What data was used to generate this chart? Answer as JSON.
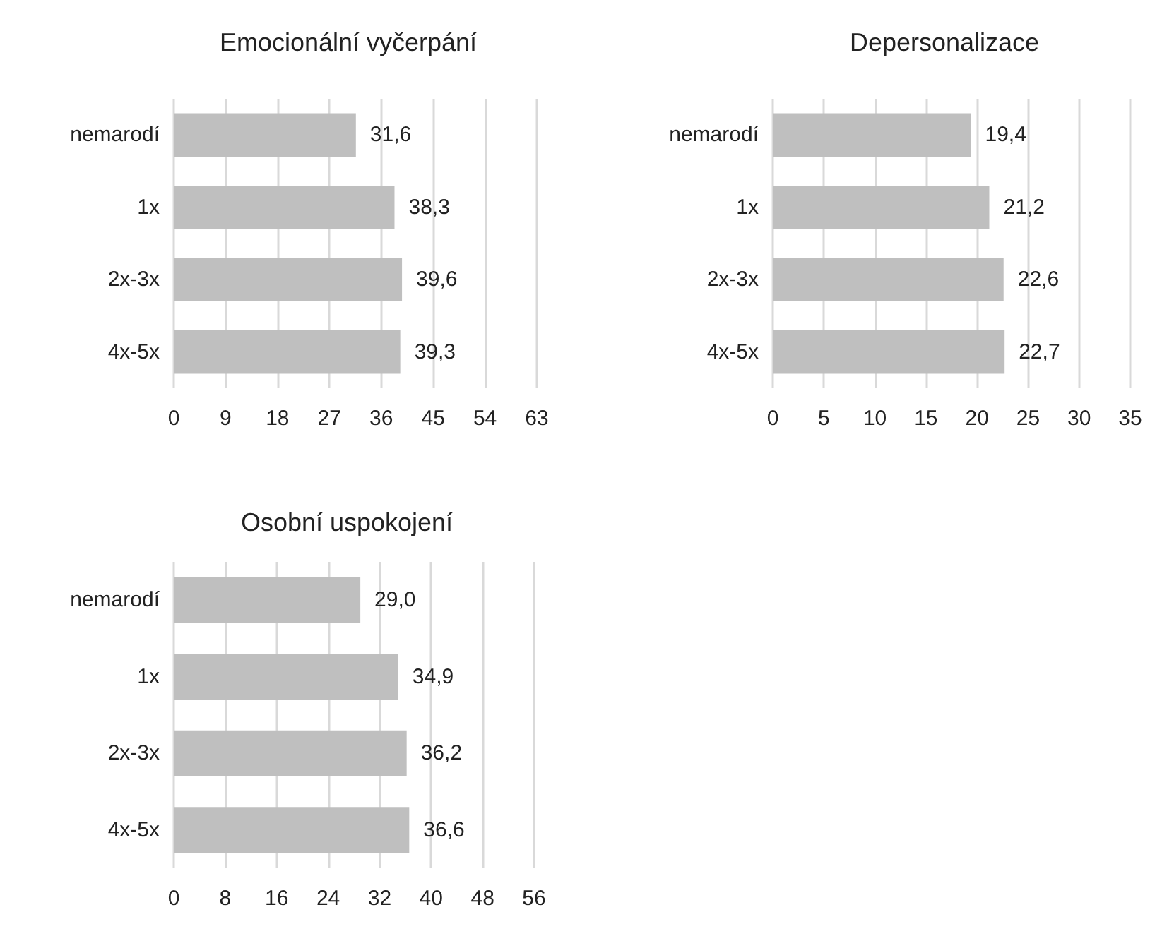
{
  "chart_data": [
    {
      "type": "bar",
      "orientation": "horizontal",
      "title": "Emocionální vyčerpání",
      "categories": [
        "nemarodí",
        "1x",
        "2x-3x",
        "4x-5x"
      ],
      "values": [
        31.6,
        38.3,
        39.6,
        39.3
      ],
      "value_labels": [
        "31,6",
        "38,3",
        "39,6",
        "39,3"
      ],
      "color": "#bfbfbf",
      "xlim": [
        0,
        63
      ],
      "xticks": [
        0,
        9,
        18,
        27,
        36,
        45,
        54,
        63
      ],
      "grid": "x"
    },
    {
      "type": "bar",
      "orientation": "horizontal",
      "title": "Depersonalizace",
      "categories": [
        "nemarodí",
        "1x",
        "2x-3x",
        "4x-5x"
      ],
      "values": [
        19.4,
        21.2,
        22.6,
        22.7
      ],
      "value_labels": [
        "19,4",
        "21,2",
        "22,6",
        "22,7"
      ],
      "color": "#bfbfbf",
      "xlim": [
        0,
        35
      ],
      "xticks": [
        0,
        5,
        10,
        15,
        20,
        25,
        30,
        35
      ],
      "grid": "x"
    },
    {
      "type": "bar",
      "orientation": "horizontal",
      "title": "Osobní uspokojení",
      "categories": [
        "nemarodí",
        "1x",
        "2x-3x",
        "4x-5x"
      ],
      "values": [
        29.0,
        34.9,
        36.2,
        36.6
      ],
      "value_labels": [
        "29,0",
        "34,9",
        "36,2",
        "36,6"
      ],
      "color": "#bfbfbf",
      "xlim": [
        0,
        56
      ],
      "xticks": [
        0,
        8,
        16,
        24,
        32,
        40,
        48,
        56
      ],
      "grid": "x"
    }
  ]
}
